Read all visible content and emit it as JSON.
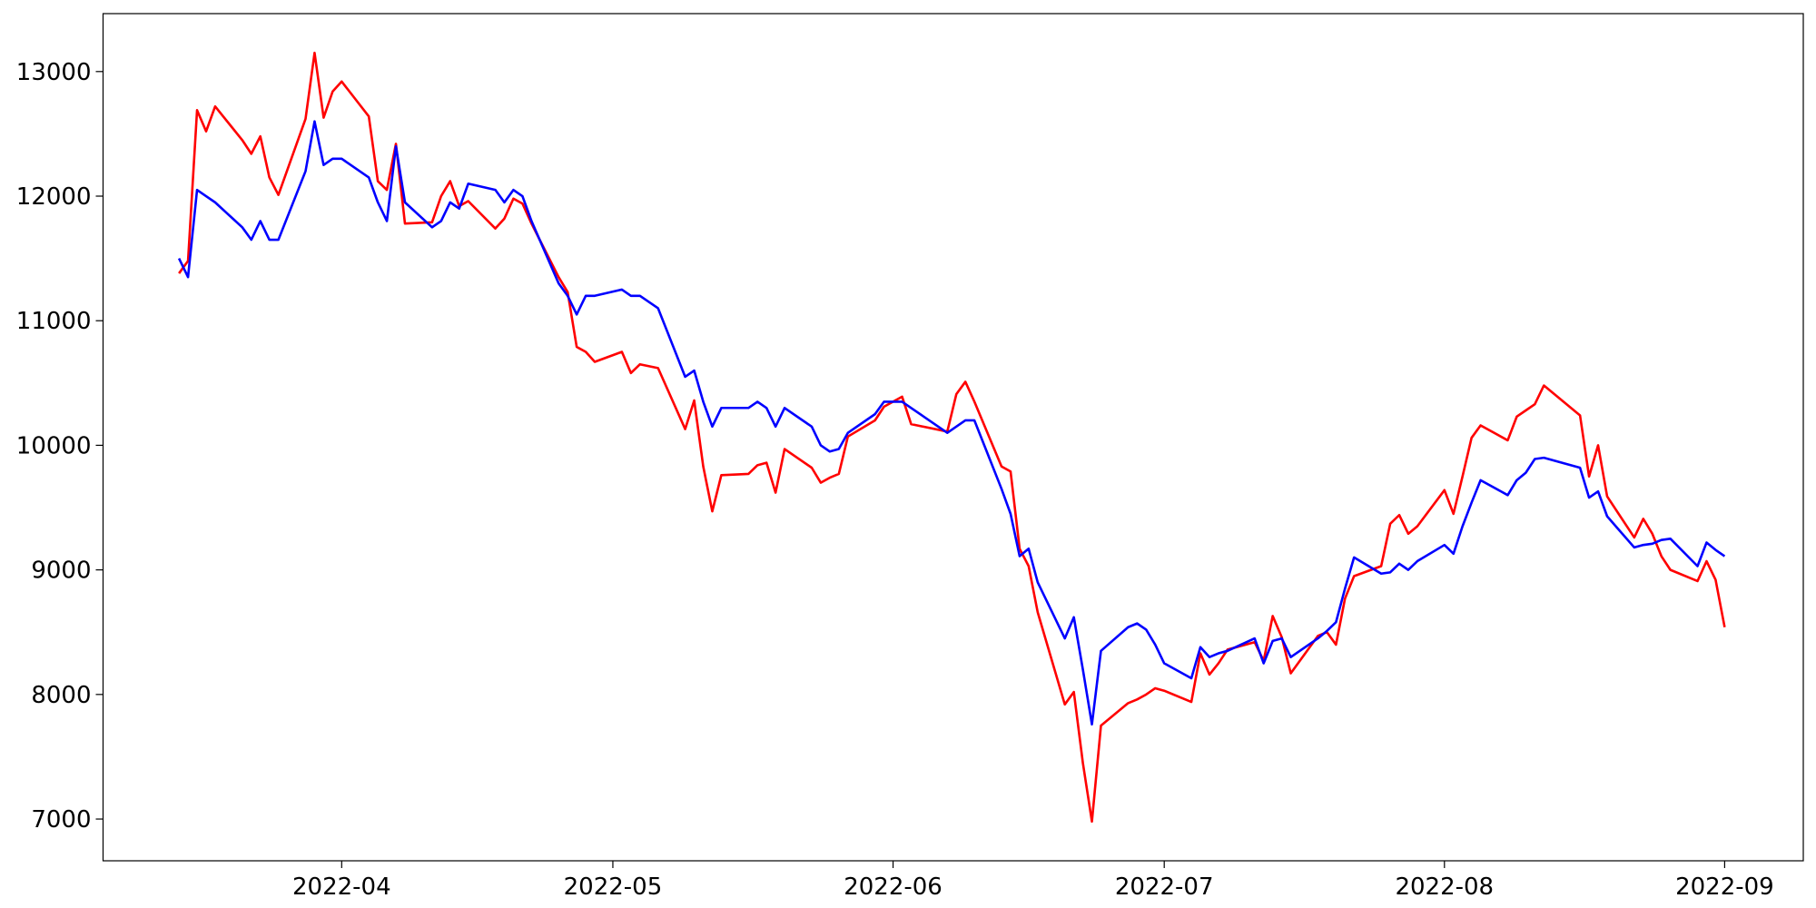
{
  "chart_data": {
    "type": "line",
    "xlim": [
      19056.6,
      19244.7
    ],
    "ylim": [
      6665,
      13465
    ],
    "xticks": [
      {
        "value": 19083,
        "label": "2022-04"
      },
      {
        "value": 19113,
        "label": "2022-05"
      },
      {
        "value": 19144,
        "label": "2022-06"
      },
      {
        "value": 19174,
        "label": "2022-07"
      },
      {
        "value": 19205,
        "label": "2022-08"
      },
      {
        "value": 19236,
        "label": "2022-09"
      }
    ],
    "yticks": [
      7000,
      8000,
      9000,
      10000,
      11000,
      12000,
      13000
    ],
    "grid": false,
    "x": [
      19065,
      19066,
      19067,
      19068,
      19069,
      19072,
      19073,
      19074,
      19075,
      19076,
      19079,
      19080,
      19081,
      19082,
      19083,
      19086,
      19087,
      19088,
      19089,
      19090,
      19093,
      19094,
      19095,
      19096,
      19097,
      19100,
      19101,
      19102,
      19103,
      19104,
      19107,
      19108,
      19109,
      19110,
      19111,
      19114,
      19115,
      19116,
      19118,
      19121,
      19122,
      19123,
      19124,
      19125,
      19128,
      19129,
      19130,
      19131,
      19132,
      19135,
      19136,
      19137,
      19138,
      19139,
      19142,
      19143,
      19145,
      19146,
      19150,
      19151,
      19152,
      19153,
      19156,
      19157,
      19158,
      19159,
      19160,
      19163,
      19164,
      19165,
      19166,
      19167,
      19170,
      19171,
      19172,
      19173,
      19174,
      19177,
      19178,
      19179,
      19180,
      19181,
      19184,
      19185,
      19186,
      19187,
      19188,
      19191,
      19192,
      19193,
      19194,
      19195,
      19198,
      19199,
      19200,
      19201,
      19202,
      19205,
      19206,
      19207,
      19208,
      19209,
      19212,
      19213,
      19214,
      19215,
      19216,
      19220,
      19221,
      19222,
      19223,
      19226,
      19227,
      19228,
      19229,
      19230,
      19233,
      19234,
      19235,
      19236
    ],
    "series": [
      {
        "color": "red",
        "values": [
          11380,
          11480,
          12690,
          12520,
          12720,
          12450,
          12340,
          12480,
          12150,
          12010,
          12620,
          13150,
          12630,
          12840,
          12920,
          12640,
          12120,
          12050,
          12420,
          11780,
          11790,
          12000,
          12120,
          11920,
          11960,
          11740,
          11820,
          11980,
          11940,
          11780,
          11350,
          11230,
          10790,
          10750,
          10670,
          10750,
          10580,
          10650,
          10620,
          10130,
          10360,
          9830,
          9470,
          9760,
          9770,
          9840,
          9860,
          9620,
          9970,
          9820,
          9700,
          9740,
          9770,
          10070,
          10200,
          10310,
          10390,
          10170,
          10110,
          10410,
          10510,
          10350,
          9830,
          9790,
          9170,
          9030,
          8660,
          7920,
          8020,
          7450,
          6980,
          7750,
          7930,
          7960,
          8000,
          8050,
          8030,
          7940,
          8330,
          8160,
          8250,
          8360,
          8420,
          8270,
          8630,
          8460,
          8170,
          8470,
          8500,
          8400,
          8770,
          8950,
          9030,
          9370,
          9440,
          9290,
          9350,
          9640,
          9450,
          9750,
          10060,
          10160,
          10040,
          10230,
          10280,
          10330,
          10480,
          10240,
          9750,
          10000,
          9590,
          9260,
          9410,
          9290,
          9110,
          9000,
          8910,
          9070,
          8920,
          8540
        ]
      },
      {
        "color": "blue",
        "values": [
          11500,
          11350,
          12050,
          12000,
          11950,
          11750,
          11650,
          11800,
          11650,
          11650,
          12200,
          12600,
          12250,
          12300,
          12300,
          12150,
          11950,
          11800,
          12400,
          11950,
          11750,
          11800,
          11950,
          11900,
          12100,
          12050,
          11950,
          12050,
          12000,
          11800,
          11300,
          11200,
          11050,
          11200,
          11200,
          11250,
          11200,
          11200,
          11100,
          10550,
          10600,
          10350,
          10150,
          10300,
          10300,
          10350,
          10300,
          10150,
          10300,
          10150,
          10000,
          9950,
          9970,
          10100,
          10250,
          10350,
          10350,
          10300,
          10100,
          10150,
          10200,
          10200,
          9650,
          9450,
          9110,
          9170,
          8900,
          8450,
          8620,
          8200,
          7760,
          8350,
          8540,
          8570,
          8520,
          8400,
          8250,
          8130,
          8380,
          8300,
          8330,
          8350,
          8450,
          8250,
          8430,
          8450,
          8300,
          8450,
          8510,
          8580,
          8850,
          9100,
          8970,
          8980,
          9050,
          9000,
          9070,
          9200,
          9130,
          9350,
          9540,
          9720,
          9600,
          9720,
          9780,
          9890,
          9900,
          9820,
          9580,
          9630,
          9430,
          9180,
          9200,
          9210,
          9240,
          9250,
          9030,
          9220,
          9160,
          9110
        ]
      }
    ]
  }
}
